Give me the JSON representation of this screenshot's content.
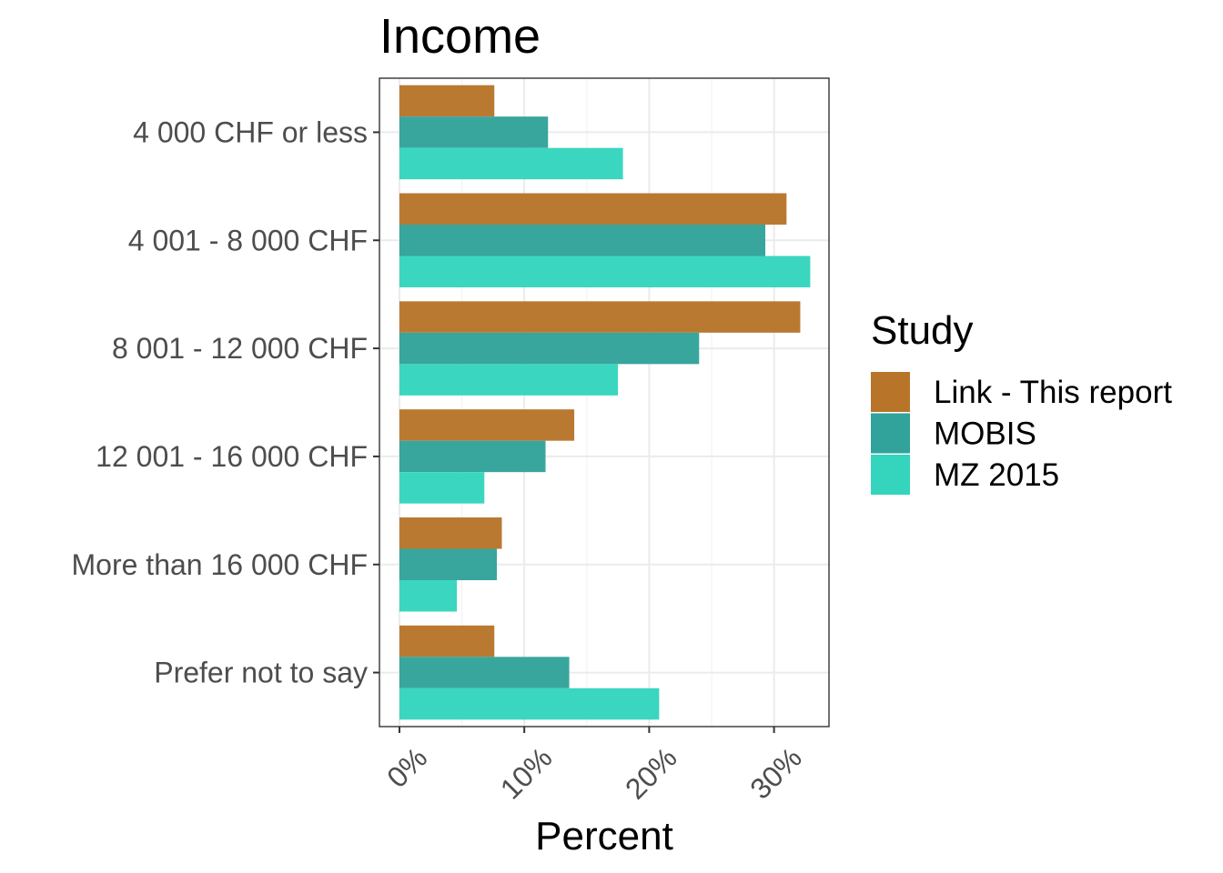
{
  "chart_data": {
    "type": "bar",
    "orientation": "horizontal",
    "title": "Income",
    "xlabel": "Percent",
    "ylabel": "",
    "xlim": [
      -1.6,
      34.4
    ],
    "x_ticks": [
      0,
      10,
      20,
      30
    ],
    "x_tick_labels": [
      "0%",
      "10%",
      "20%",
      "30%"
    ],
    "grid": true,
    "categories": [
      "4 000 CHF or less",
      "4 001 - 8 000 CHF",
      "8 001 - 12 000 CHF",
      "12 001 - 16 000 CHF",
      "More than 16 000 CHF",
      "Prefer not to say"
    ],
    "series": [
      {
        "name": "Link - This report",
        "color": "#b8752a",
        "values": [
          7.6,
          31.0,
          32.1,
          14.0,
          8.2,
          7.6
        ]
      },
      {
        "name": "MOBIS",
        "color": "#32a39a",
        "values": [
          11.9,
          29.3,
          24.0,
          11.7,
          7.8,
          13.6
        ]
      },
      {
        "name": "MZ 2015",
        "color": "#35d5bd",
        "values": [
          17.9,
          32.9,
          17.5,
          6.8,
          4.6,
          20.8
        ]
      }
    ],
    "legend": {
      "title": "Study",
      "position": "right"
    }
  }
}
